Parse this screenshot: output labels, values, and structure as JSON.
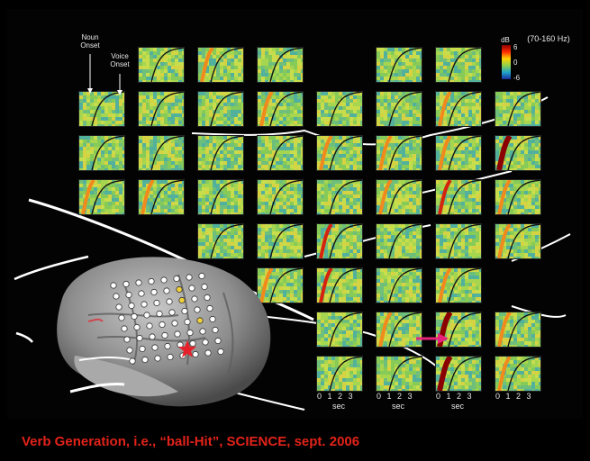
{
  "figure": {
    "labels": {
      "noun_onset": "Noun Onset",
      "voice_onset": "Voice Onset",
      "freq_band": "(70-160 Hz)",
      "db_unit": "dB"
    },
    "colorbar": {
      "ticks": [
        "6",
        "0",
        "-6"
      ],
      "colors": [
        "#8b0000",
        "#ff2a00",
        "#ffd400",
        "#8fd14f",
        "#1fa3c9",
        "#1a2d9c"
      ]
    },
    "axis": {
      "tick_labels": "0 1 2 3",
      "unit": "sec"
    },
    "brain": {
      "star_color": "#e5222b",
      "arrow_color": "#e8247a"
    }
  },
  "caption": {
    "text": "Verb Generation, i.e., “ball-Hit”, SCIENCE, sept. 2006",
    "color": "#e2231a"
  }
}
